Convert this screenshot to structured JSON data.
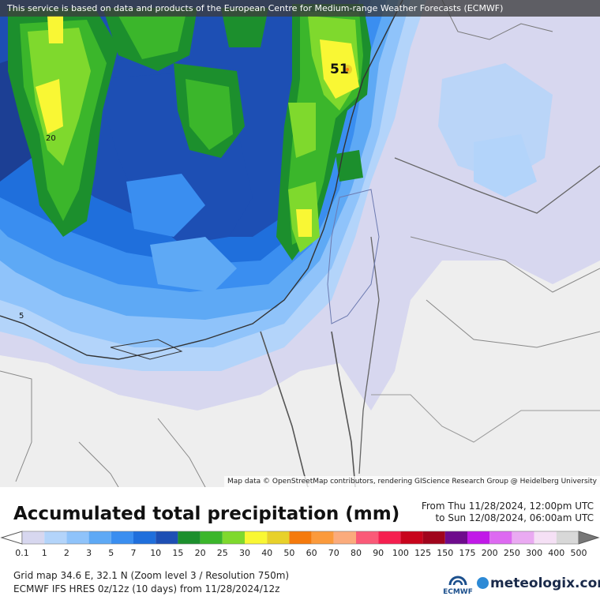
{
  "map": {
    "disclaimer": "This service is based on data and products of the European Centre for Medium-range Weather Forecasts (ECMWF)",
    "attribution": "Map data © OpenStreetMap contributors, rendering GIScience Research Group @ Heidelberg University",
    "peak_label": "51",
    "contour_labels": [
      "20",
      "5"
    ]
  },
  "legend": {
    "title": "Accumulated total precipitation (mm)",
    "period_from": "From Thu 11/28/2024, 12:00pm UTC",
    "period_to": "to Sun 12/08/2024, 06:00am UTC",
    "levels": [
      "0.1",
      "1",
      "2",
      "3",
      "5",
      "7",
      "10",
      "15",
      "20",
      "25",
      "30",
      "40",
      "50",
      "60",
      "70",
      "80",
      "90",
      "100",
      "125",
      "150",
      "175",
      "200",
      "250",
      "300",
      "400",
      "500"
    ],
    "colors": [
      "#d7d7ef",
      "#b3d4fa",
      "#8fc3fa",
      "#5ea9f5",
      "#3a8ef0",
      "#1f6fdc",
      "#1d4fb4",
      "#1c8f2d",
      "#3bb62b",
      "#7fd92d",
      "#f9f734",
      "#e8d12a",
      "#f57a0c",
      "#fb9a3c",
      "#fbab7c",
      "#fa5a78",
      "#f51f4f",
      "#c8041c",
      "#a0041c",
      "#6e0b8c",
      "#c119e8",
      "#dd6af1",
      "#eaaaf2",
      "#f5e0f5",
      "#d8d8d8"
    ]
  },
  "info": {
    "grid": "Grid map 34.6 E, 32.1 N (Zoom level 3 / Resolution 750m)",
    "model": "ECMWF IFS HRES 0z/12z (10 days) from 11/28/2024/12z"
  },
  "logos": {
    "ecmwf": "ECMWF",
    "meteologix": "meteologix.com"
  }
}
